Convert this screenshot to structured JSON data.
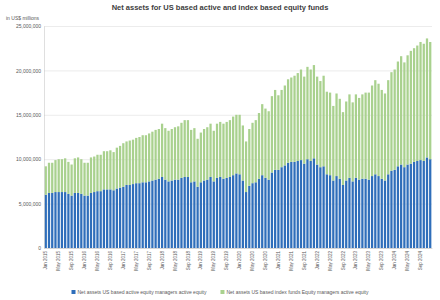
{
  "chart_data": {
    "type": "bar",
    "stacked": true,
    "title": "Net assets for US based active and index based equity funds",
    "y_label": "in US$ millions",
    "legend": "bottom",
    "grid": true,
    "categories": [
      "Jan 2015",
      null,
      null,
      null,
      "May 2015",
      null,
      null,
      null,
      "Sep 2015",
      null,
      null,
      null,
      "Jan 2016",
      null,
      null,
      null,
      "May 2016",
      null,
      null,
      null,
      "Sep 2016",
      null,
      null,
      null,
      "Jan 2017",
      null,
      null,
      null,
      "May 2017",
      null,
      null,
      null,
      "Sep 2017",
      null,
      null,
      null,
      "Jan 2018",
      null,
      null,
      null,
      "May 2018",
      null,
      null,
      null,
      "Sep 2018",
      null,
      null,
      null,
      "Jan 2019",
      null,
      null,
      null,
      "May 2019",
      null,
      null,
      null,
      "Sep 2019",
      null,
      null,
      null,
      "Jan 2020",
      null,
      null,
      null,
      "May 2020",
      null,
      null,
      null,
      "Sep 2020",
      null,
      null,
      null,
      "Jan 2021",
      null,
      null,
      null,
      "May 2021",
      null,
      null,
      null,
      "Sep 2021",
      null,
      null,
      null,
      "Jan 2022",
      null,
      null,
      null,
      "May 2022",
      null,
      null,
      null,
      "Sep 2022",
      null,
      null,
      null,
      "Jan 2023",
      null,
      null,
      null,
      "May 2023",
      null,
      null,
      null,
      "Sep 2023",
      null,
      null,
      null,
      "Jan 2024",
      null,
      null,
      null,
      "May 2024",
      null,
      null,
      null,
      "Sep 2024",
      null,
      null,
      null
    ],
    "series": [
      {
        "name": "Net assets US based active equity  managers active equity",
        "color": "#2f6eba",
        "values": [
          6000000,
          6200000,
          6200000,
          6300000,
          6300000,
          6300000,
          6300000,
          6100000,
          5900000,
          6200000,
          6200000,
          6100000,
          5900000,
          5900000,
          6200000,
          6300000,
          6400000,
          6400000,
          6600000,
          6600000,
          6600000,
          6500000,
          6700000,
          6800000,
          6900000,
          7100000,
          7100000,
          7200000,
          7300000,
          7300000,
          7400000,
          7400000,
          7500000,
          7600000,
          7700000,
          7800000,
          8000000,
          7700000,
          7500000,
          7600000,
          7700000,
          7700000,
          7900000,
          8000000,
          8000000,
          7400000,
          7500000,
          6900000,
          7400000,
          7600000,
          7700000,
          8000000,
          7500000,
          7900000,
          8000000,
          7800000,
          7900000,
          8000000,
          8200000,
          8400000,
          8300000,
          7600000,
          6300000,
          7000000,
          7300000,
          7400000,
          7800000,
          8200000,
          7900000,
          7700000,
          8500000,
          8800000,
          8800000,
          9100000,
          9300000,
          9600000,
          9700000,
          9700000,
          9800000,
          9900000,
          9500000,
          10000000,
          9800000,
          10100000,
          9400000,
          9100000,
          9200000,
          8300000,
          8200000,
          7600000,
          8100000,
          7800000,
          7100000,
          7600000,
          7900000,
          7500000,
          7900000,
          7700000,
          7800000,
          7800000,
          7700000,
          8100000,
          8300000,
          8100000,
          7800000,
          7600000,
          8300000,
          8700000,
          8800000,
          9200000,
          9400000,
          9100000,
          9400000,
          9500000,
          9700000,
          9800000,
          9900000,
          9800000,
          10200000,
          10000000
        ]
      },
      {
        "name": "Net assets US based index funds Equity  managers active equity",
        "color": "#a9d18e",
        "values": [
          3200000,
          3400000,
          3400000,
          3600000,
          3700000,
          3700000,
          3800000,
          3600000,
          3500000,
          3900000,
          4000000,
          3900000,
          3700000,
          3700000,
          4000000,
          4000000,
          4100000,
          4100000,
          4300000,
          4300000,
          4400000,
          4300000,
          4600000,
          4700000,
          4900000,
          4900000,
          5000000,
          5000000,
          5100000,
          5200000,
          5300000,
          5300000,
          5400000,
          5500000,
          5600000,
          5600000,
          6000000,
          5800000,
          5700000,
          5800000,
          5900000,
          6000000,
          6200000,
          6400000,
          6400000,
          5900000,
          6000000,
          5400000,
          5600000,
          5800000,
          5900000,
          6000000,
          5700000,
          6100000,
          6200000,
          6200000,
          6300000,
          6400000,
          6600000,
          6600000,
          6700000,
          6200000,
          5700000,
          6400000,
          6800000,
          7000000,
          7400000,
          8000000,
          7800000,
          7700000,
          8600000,
          9000000,
          8400000,
          8700000,
          9000000,
          9400000,
          9500000,
          9700000,
          9900000,
          10200000,
          9800000,
          10400000,
          10300000,
          10500000,
          9900000,
          9700000,
          10200000,
          9300000,
          9300000,
          8400000,
          9300000,
          9000000,
          8200000,
          8900000,
          9400000,
          8900000,
          9400000,
          9200000,
          9500000,
          9700000,
          9800000,
          10200000,
          10600000,
          10400000,
          10000000,
          9800000,
          10600000,
          11100000,
          11300000,
          11800000,
          12200000,
          11800000,
          12300000,
          12700000,
          12800000,
          13000000,
          13300000,
          13200000,
          13400000,
          13200000
        ]
      }
    ],
    "ylim": [
      0,
      25000000
    ],
    "yticks": [
      0,
      {
        "value": 5000000,
        "label": "5,000,000"
      },
      {
        "value": 10000000,
        "label": "10,000,000"
      },
      {
        "value": 15000000,
        "label": "15,000,000"
      },
      {
        "value": 20000000,
        "label": "20,000,000"
      },
      {
        "value": 25000000,
        "label": "25,000,000"
      }
    ]
  }
}
